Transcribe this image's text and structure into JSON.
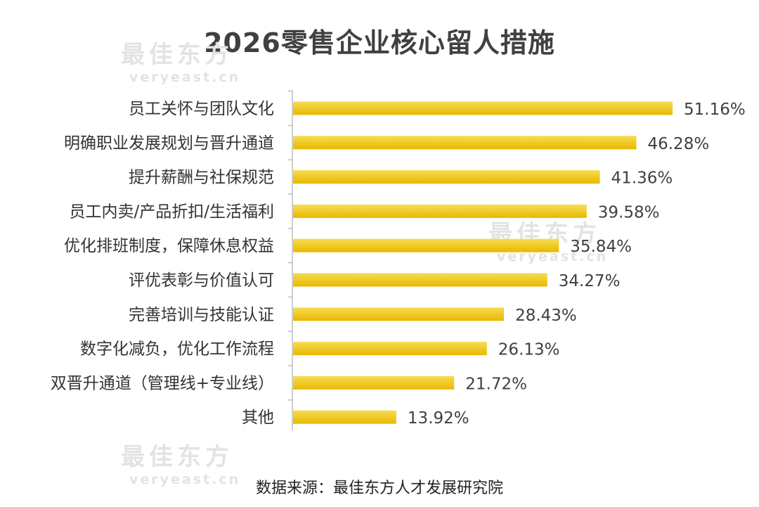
{
  "chart_data": {
    "type": "bar",
    "orientation": "horizontal",
    "title": "2026零售企业核心留人措施",
    "categories": [
      "员工关怀与团队文化",
      "明确职业发展规划与晋升通道",
      "提升薪酬与社保规范",
      "员工内卖/产品折扣/生活福利",
      "优化排班制度，保障休息权益",
      "评优表彰与价值认可",
      "完善培训与技能认证",
      "数字化减负，优化工作流程",
      "双晋升通道（管理线+专业线）",
      "其他"
    ],
    "values": [
      51.16,
      46.28,
      41.36,
      39.58,
      35.84,
      34.27,
      28.43,
      26.13,
      21.72,
      13.92
    ],
    "value_labels": [
      "51.16%",
      "46.28%",
      "41.36%",
      "39.58%",
      "35.84%",
      "34.27%",
      "28.43%",
      "26.13%",
      "21.72%",
      "13.92%"
    ],
    "xlim": [
      0,
      51.16
    ],
    "grid": false,
    "legend": "none",
    "bar_color": "#e8b800",
    "bar_color_light": "#f7dc52"
  },
  "source_note": "数据来源：最佳东方人才发展研究院",
  "watermark": {
    "cn": "最佳东方",
    "en": "veryeast.cn"
  }
}
